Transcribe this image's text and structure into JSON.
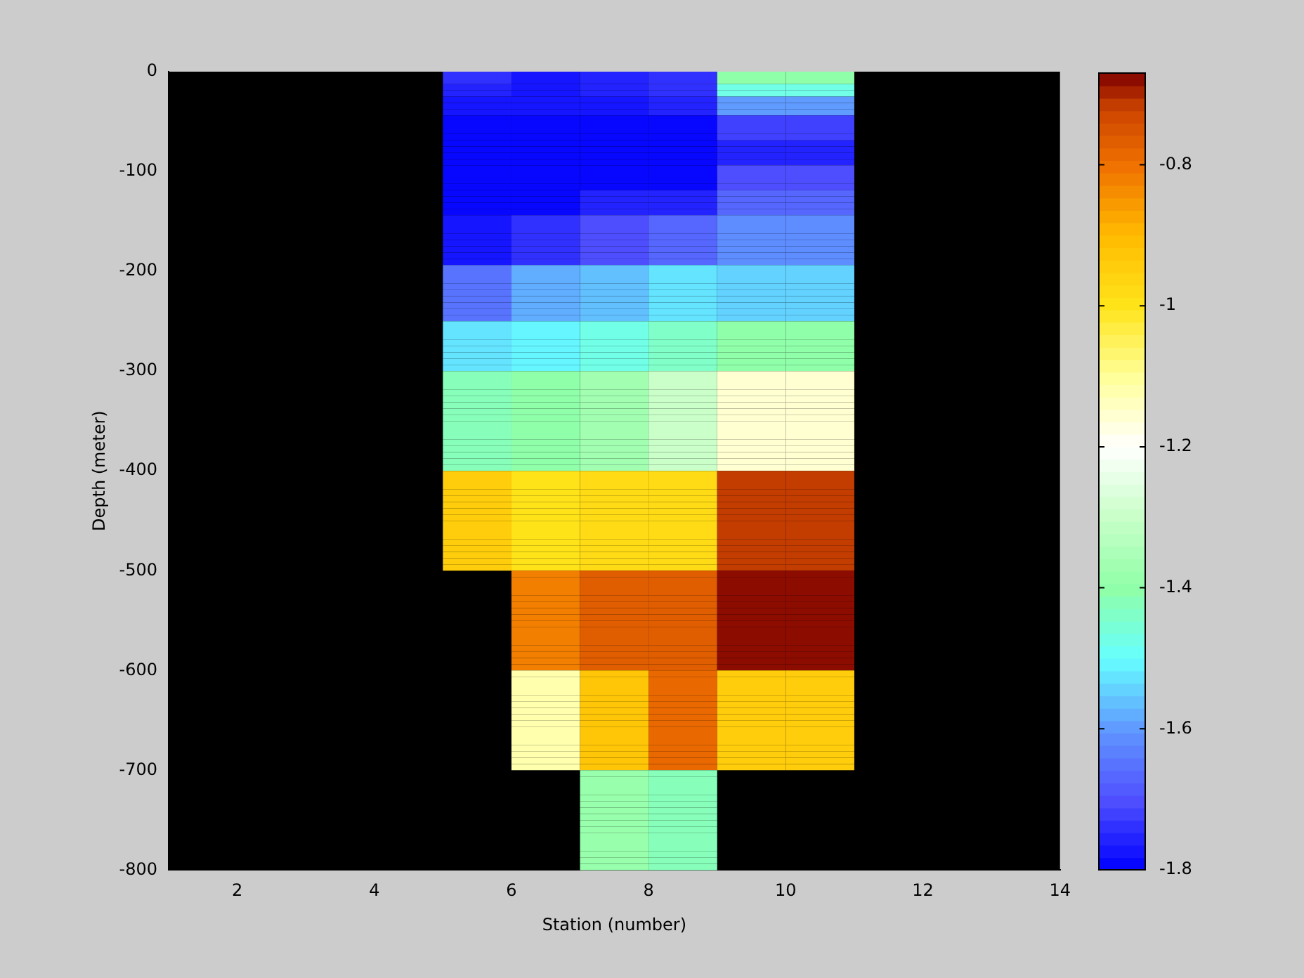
{
  "chart_data": {
    "type": "heatmap",
    "xlabel": "Station (number)",
    "ylabel": "Depth (meter)",
    "cells": [
      [
        null,
        null,
        null,
        null,
        -1.74,
        -1.77,
        -1.76,
        -1.74,
        -1.4,
        -1.4,
        null,
        null,
        null
      ],
      [
        null,
        null,
        null,
        null,
        -1.74,
        -1.77,
        -1.76,
        -1.74,
        -1.4,
        -1.4,
        null,
        null,
        null
      ],
      [
        null,
        null,
        null,
        null,
        -1.75,
        -1.77,
        -1.75,
        -1.73,
        -1.48,
        -1.48,
        null,
        null,
        null
      ],
      [
        null,
        null,
        null,
        null,
        -1.75,
        -1.77,
        -1.75,
        -1.73,
        -1.48,
        -1.48,
        null,
        null,
        null
      ],
      [
        null,
        null,
        null,
        null,
        -1.77,
        -1.78,
        -1.77,
        -1.76,
        -1.6,
        -1.6,
        null,
        null,
        null
      ],
      [
        null,
        null,
        null,
        null,
        -1.77,
        -1.78,
        -1.77,
        -1.76,
        -1.6,
        -1.6,
        null,
        null,
        null
      ],
      [
        null,
        null,
        null,
        null,
        -1.77,
        -1.78,
        -1.77,
        -1.76,
        -1.6,
        -1.6,
        null,
        null,
        null
      ],
      [
        null,
        null,
        null,
        null,
        -1.8,
        -1.8,
        -1.79,
        -1.79,
        -1.72,
        -1.72,
        null,
        null,
        null
      ],
      [
        null,
        null,
        null,
        null,
        -1.8,
        -1.8,
        -1.79,
        -1.79,
        -1.72,
        -1.72,
        null,
        null,
        null
      ],
      [
        null,
        null,
        null,
        null,
        -1.8,
        -1.8,
        -1.79,
        -1.79,
        -1.72,
        -1.72,
        null,
        null,
        null
      ],
      [
        null,
        null,
        null,
        null,
        -1.8,
        -1.8,
        -1.79,
        -1.79,
        -1.72,
        -1.72,
        null,
        null,
        null
      ],
      [
        null,
        null,
        null,
        null,
        -1.8,
        -1.8,
        -1.8,
        -1.8,
        -1.76,
        -1.76,
        null,
        null,
        null
      ],
      [
        null,
        null,
        null,
        null,
        -1.8,
        -1.8,
        -1.8,
        -1.8,
        -1.76,
        -1.76,
        null,
        null,
        null
      ],
      [
        null,
        null,
        null,
        null,
        -1.8,
        -1.8,
        -1.8,
        -1.8,
        -1.76,
        -1.76,
        null,
        null,
        null
      ],
      [
        null,
        null,
        null,
        null,
        -1.8,
        -1.8,
        -1.8,
        -1.8,
        -1.76,
        -1.76,
        null,
        null,
        null
      ],
      [
        null,
        null,
        null,
        null,
        -1.8,
        -1.8,
        -1.79,
        -1.79,
        -1.71,
        -1.71,
        null,
        null,
        null
      ],
      [
        null,
        null,
        null,
        null,
        -1.8,
        -1.8,
        -1.79,
        -1.79,
        -1.71,
        -1.71,
        null,
        null,
        null
      ],
      [
        null,
        null,
        null,
        null,
        -1.8,
        -1.8,
        -1.79,
        -1.79,
        -1.71,
        -1.71,
        null,
        null,
        null
      ],
      [
        null,
        null,
        null,
        null,
        -1.8,
        -1.8,
        -1.79,
        -1.79,
        -1.71,
        -1.71,
        null,
        null,
        null
      ],
      [
        null,
        null,
        null,
        null,
        -1.8,
        -1.79,
        -1.76,
        -1.76,
        -1.67,
        -1.67,
        null,
        null,
        null
      ],
      [
        null,
        null,
        null,
        null,
        -1.8,
        -1.79,
        -1.76,
        -1.76,
        -1.67,
        -1.67,
        null,
        null,
        null
      ],
      [
        null,
        null,
        null,
        null,
        -1.8,
        -1.79,
        -1.76,
        -1.76,
        -1.67,
        -1.67,
        null,
        null,
        null
      ],
      [
        null,
        null,
        null,
        null,
        -1.8,
        -1.79,
        -1.76,
        -1.76,
        -1.67,
        -1.67,
        null,
        null,
        null
      ],
      [
        null,
        null,
        null,
        null,
        -1.78,
        -1.74,
        -1.71,
        -1.67,
        -1.62,
        -1.62,
        null,
        null,
        null
      ],
      [
        null,
        null,
        null,
        null,
        -1.78,
        -1.74,
        -1.71,
        -1.67,
        -1.62,
        -1.62,
        null,
        null,
        null
      ],
      [
        null,
        null,
        null,
        null,
        -1.78,
        -1.74,
        -1.71,
        -1.67,
        -1.62,
        -1.62,
        null,
        null,
        null
      ],
      [
        null,
        null,
        null,
        null,
        -1.78,
        -1.74,
        -1.71,
        -1.67,
        -1.62,
        -1.62,
        null,
        null,
        null
      ],
      [
        null,
        null,
        null,
        null,
        -1.78,
        -1.74,
        -1.71,
        -1.67,
        -1.62,
        -1.62,
        null,
        null,
        null
      ],
      [
        null,
        null,
        null,
        null,
        -1.78,
        -1.74,
        -1.71,
        -1.67,
        -1.62,
        -1.62,
        null,
        null,
        null
      ],
      [
        null,
        null,
        null,
        null,
        -1.78,
        -1.74,
        -1.71,
        -1.67,
        -1.62,
        -1.62,
        null,
        null,
        null
      ],
      [
        null,
        null,
        null,
        null,
        -1.78,
        -1.74,
        -1.71,
        -1.67,
        -1.62,
        -1.62,
        null,
        null,
        null
      ],
      [
        null,
        null,
        null,
        null,
        -1.65,
        -1.58,
        -1.56,
        -1.52,
        -1.54,
        -1.54,
        null,
        null,
        null
      ],
      [
        null,
        null,
        null,
        null,
        -1.65,
        -1.58,
        -1.56,
        -1.52,
        -1.54,
        -1.54,
        null,
        null,
        null
      ],
      [
        null,
        null,
        null,
        null,
        -1.65,
        -1.58,
        -1.56,
        -1.52,
        -1.54,
        -1.54,
        null,
        null,
        null
      ],
      [
        null,
        null,
        null,
        null,
        -1.65,
        -1.58,
        -1.56,
        -1.52,
        -1.54,
        -1.54,
        null,
        null,
        null
      ],
      [
        null,
        null,
        null,
        null,
        -1.65,
        -1.58,
        -1.56,
        -1.52,
        -1.54,
        -1.54,
        null,
        null,
        null
      ],
      [
        null,
        null,
        null,
        null,
        -1.65,
        -1.58,
        -1.56,
        -1.52,
        -1.54,
        -1.54,
        null,
        null,
        null
      ],
      [
        null,
        null,
        null,
        null,
        -1.65,
        -1.58,
        -1.56,
        -1.52,
        -1.54,
        -1.54,
        null,
        null,
        null
      ],
      [
        null,
        null,
        null,
        null,
        -1.65,
        -1.58,
        -1.56,
        -1.52,
        -1.54,
        -1.54,
        null,
        null,
        null
      ],
      [
        null,
        null,
        null,
        null,
        -1.65,
        -1.58,
        -1.56,
        -1.52,
        -1.54,
        -1.54,
        null,
        null,
        null
      ],
      [
        null,
        null,
        null,
        null,
        -1.52,
        -1.5,
        -1.48,
        -1.44,
        -1.4,
        -1.4,
        null,
        null,
        null
      ],
      [
        null,
        null,
        null,
        null,
        -1.52,
        -1.5,
        -1.48,
        -1.44,
        -1.4,
        -1.4,
        null,
        null,
        null
      ],
      [
        null,
        null,
        null,
        null,
        -1.52,
        -1.5,
        -1.48,
        -1.44,
        -1.4,
        -1.4,
        null,
        null,
        null
      ],
      [
        null,
        null,
        null,
        null,
        -1.52,
        -1.5,
        -1.48,
        -1.44,
        -1.4,
        -1.4,
        null,
        null,
        null
      ],
      [
        null,
        null,
        null,
        null,
        -1.52,
        -1.5,
        -1.48,
        -1.44,
        -1.4,
        -1.4,
        null,
        null,
        null
      ],
      [
        null,
        null,
        null,
        null,
        -1.52,
        -1.5,
        -1.48,
        -1.44,
        -1.4,
        -1.4,
        null,
        null,
        null
      ],
      [
        null,
        null,
        null,
        null,
        -1.52,
        -1.5,
        -1.48,
        -1.44,
        -1.4,
        -1.4,
        null,
        null,
        null
      ],
      [
        null,
        null,
        null,
        null,
        -1.52,
        -1.5,
        -1.48,
        -1.44,
        -1.4,
        -1.4,
        null,
        null,
        null
      ],
      [
        null,
        null,
        null,
        null,
        -1.42,
        -1.4,
        -1.37,
        -1.3,
        -1.16,
        -1.16,
        null,
        null,
        null
      ],
      [
        null,
        null,
        null,
        null,
        -1.42,
        -1.4,
        -1.37,
        -1.3,
        -1.16,
        -1.16,
        null,
        null,
        null
      ],
      [
        null,
        null,
        null,
        null,
        -1.42,
        -1.4,
        -1.37,
        -1.3,
        -1.16,
        -1.16,
        null,
        null,
        null
      ],
      [
        null,
        null,
        null,
        null,
        -1.42,
        -1.4,
        -1.37,
        -1.3,
        -1.16,
        -1.16,
        null,
        null,
        null
      ],
      [
        null,
        null,
        null,
        null,
        -1.42,
        -1.4,
        -1.37,
        -1.3,
        -1.16,
        -1.16,
        null,
        null,
        null
      ],
      [
        null,
        null,
        null,
        null,
        -1.42,
        -1.4,
        -1.37,
        -1.3,
        -1.16,
        -1.16,
        null,
        null,
        null
      ],
      [
        null,
        null,
        null,
        null,
        -1.42,
        -1.4,
        -1.37,
        -1.3,
        -1.16,
        -1.16,
        null,
        null,
        null
      ],
      [
        null,
        null,
        null,
        null,
        -1.42,
        -1.4,
        -1.37,
        -1.3,
        -1.16,
        -1.16,
        null,
        null,
        null
      ],
      [
        null,
        null,
        null,
        null,
        -1.42,
        -1.4,
        -1.37,
        -1.3,
        -1.16,
        -1.16,
        null,
        null,
        null
      ],
      [
        null,
        null,
        null,
        null,
        -1.42,
        -1.4,
        -1.37,
        -1.3,
        -1.16,
        -1.16,
        null,
        null,
        null
      ],
      [
        null,
        null,
        null,
        null,
        -1.42,
        -1.4,
        -1.37,
        -1.3,
        -1.16,
        -1.16,
        null,
        null,
        null
      ],
      [
        null,
        null,
        null,
        null,
        -1.42,
        -1.4,
        -1.37,
        -1.3,
        -1.16,
        -1.16,
        null,
        null,
        null
      ],
      [
        null,
        null,
        null,
        null,
        -1.42,
        -1.4,
        -1.37,
        -1.3,
        -1.16,
        -1.16,
        null,
        null,
        null
      ],
      [
        null,
        null,
        null,
        null,
        -1.42,
        -1.4,
        -1.37,
        -1.3,
        -1.16,
        -1.16,
        null,
        null,
        null
      ],
      [
        null,
        null,
        null,
        null,
        -1.42,
        -1.4,
        -1.37,
        -1.3,
        -1.16,
        -1.16,
        null,
        null,
        null
      ],
      [
        null,
        null,
        null,
        null,
        -1.42,
        -1.4,
        -1.37,
        -1.3,
        -1.16,
        -1.16,
        null,
        null,
        null
      ],
      [
        null,
        null,
        null,
        null,
        -0.95,
        -0.99,
        -0.98,
        -0.98,
        -0.72,
        -0.72,
        null,
        null,
        null
      ],
      [
        null,
        null,
        null,
        null,
        -0.95,
        -0.99,
        -0.98,
        -0.98,
        -0.72,
        -0.72,
        null,
        null,
        null
      ],
      [
        null,
        null,
        null,
        null,
        -0.95,
        -0.99,
        -0.98,
        -0.98,
        -0.72,
        -0.72,
        null,
        null,
        null
      ],
      [
        null,
        null,
        null,
        null,
        -0.95,
        -0.99,
        -0.98,
        -0.98,
        -0.72,
        -0.72,
        null,
        null,
        null
      ],
      [
        null,
        null,
        null,
        null,
        -0.95,
        -0.99,
        -0.98,
        -0.98,
        -0.72,
        -0.72,
        null,
        null,
        null
      ],
      [
        null,
        null,
        null,
        null,
        -0.95,
        -0.99,
        -0.98,
        -0.98,
        -0.72,
        -0.72,
        null,
        null,
        null
      ],
      [
        null,
        null,
        null,
        null,
        -0.95,
        -0.99,
        -0.98,
        -0.98,
        -0.72,
        -0.72,
        null,
        null,
        null
      ],
      [
        null,
        null,
        null,
        null,
        -0.95,
        -0.99,
        -0.98,
        -0.98,
        -0.72,
        -0.72,
        null,
        null,
        null
      ],
      [
        null,
        null,
        null,
        null,
        -0.95,
        -0.99,
        -0.98,
        -0.98,
        -0.72,
        -0.72,
        null,
        null,
        null
      ],
      [
        null,
        null,
        null,
        null,
        -0.95,
        -0.99,
        -0.98,
        -0.98,
        -0.72,
        -0.72,
        null,
        null,
        null
      ],
      [
        null,
        null,
        null,
        null,
        -0.95,
        -0.99,
        -0.98,
        -0.98,
        -0.72,
        -0.72,
        null,
        null,
        null
      ],
      [
        null,
        null,
        null,
        null,
        -0.95,
        -0.99,
        -0.98,
        -0.98,
        -0.72,
        -0.72,
        null,
        null,
        null
      ],
      [
        null,
        null,
        null,
        null,
        -0.95,
        -0.99,
        -0.98,
        -0.98,
        -0.72,
        -0.72,
        null,
        null,
        null
      ],
      [
        null,
        null,
        null,
        null,
        -0.95,
        -0.99,
        -0.98,
        -0.98,
        -0.72,
        -0.72,
        null,
        null,
        null
      ],
      [
        null,
        null,
        null,
        null,
        -0.95,
        -0.99,
        -0.98,
        -0.98,
        -0.72,
        -0.72,
        null,
        null,
        null
      ],
      [
        null,
        null,
        null,
        null,
        -0.95,
        -0.99,
        -0.98,
        -0.98,
        -0.72,
        -0.72,
        null,
        null,
        null
      ],
      [
        null,
        null,
        null,
        null,
        null,
        -0.82,
        -0.76,
        -0.76,
        -0.68,
        -0.68,
        null,
        null,
        null
      ],
      [
        null,
        null,
        null,
        null,
        null,
        -0.82,
        -0.76,
        -0.76,
        -0.68,
        -0.68,
        null,
        null,
        null
      ],
      [
        null,
        null,
        null,
        null,
        null,
        -0.82,
        -0.76,
        -0.76,
        -0.68,
        -0.68,
        null,
        null,
        null
      ],
      [
        null,
        null,
        null,
        null,
        null,
        -0.82,
        -0.76,
        -0.76,
        -0.68,
        -0.68,
        null,
        null,
        null
      ],
      [
        null,
        null,
        null,
        null,
        null,
        -0.82,
        -0.76,
        -0.76,
        -0.68,
        -0.68,
        null,
        null,
        null
      ],
      [
        null,
        null,
        null,
        null,
        null,
        -0.82,
        -0.76,
        -0.76,
        -0.68,
        -0.68,
        null,
        null,
        null
      ],
      [
        null,
        null,
        null,
        null,
        null,
        -0.82,
        -0.76,
        -0.76,
        -0.68,
        -0.68,
        null,
        null,
        null
      ],
      [
        null,
        null,
        null,
        null,
        null,
        -0.82,
        -0.76,
        -0.76,
        -0.68,
        -0.68,
        null,
        null,
        null
      ],
      [
        null,
        null,
        null,
        null,
        null,
        -0.82,
        -0.76,
        -0.76,
        -0.68,
        -0.68,
        null,
        null,
        null
      ],
      [
        null,
        null,
        null,
        null,
        null,
        -0.82,
        -0.76,
        -0.76,
        -0.68,
        -0.68,
        null,
        null,
        null
      ],
      [
        null,
        null,
        null,
        null,
        null,
        -0.82,
        -0.76,
        -0.76,
        -0.68,
        -0.68,
        null,
        null,
        null
      ],
      [
        null,
        null,
        null,
        null,
        null,
        -0.82,
        -0.76,
        -0.76,
        -0.68,
        -0.68,
        null,
        null,
        null
      ],
      [
        null,
        null,
        null,
        null,
        null,
        -0.82,
        -0.76,
        -0.76,
        -0.68,
        -0.68,
        null,
        null,
        null
      ],
      [
        null,
        null,
        null,
        null,
        null,
        -0.82,
        -0.76,
        -0.76,
        -0.68,
        -0.68,
        null,
        null,
        null
      ],
      [
        null,
        null,
        null,
        null,
        null,
        -0.82,
        -0.76,
        -0.76,
        -0.68,
        -0.68,
        null,
        null,
        null
      ],
      [
        null,
        null,
        null,
        null,
        null,
        -0.82,
        -0.76,
        -0.76,
        -0.68,
        -0.68,
        null,
        null,
        null
      ],
      [
        null,
        null,
        null,
        null,
        null,
        -1.12,
        -0.93,
        -0.79,
        -0.95,
        -0.95,
        null,
        null,
        null
      ],
      [
        null,
        null,
        null,
        null,
        null,
        -1.12,
        -0.93,
        -0.79,
        -0.95,
        -0.95,
        null,
        null,
        null
      ],
      [
        null,
        null,
        null,
        null,
        null,
        -1.12,
        -0.93,
        -0.79,
        -0.95,
        -0.95,
        null,
        null,
        null
      ],
      [
        null,
        null,
        null,
        null,
        null,
        -1.12,
        -0.93,
        -0.79,
        -0.95,
        -0.95,
        null,
        null,
        null
      ],
      [
        null,
        null,
        null,
        null,
        null,
        -1.12,
        -0.93,
        -0.79,
        -0.95,
        -0.95,
        null,
        null,
        null
      ],
      [
        null,
        null,
        null,
        null,
        null,
        -1.12,
        -0.93,
        -0.79,
        -0.95,
        -0.95,
        null,
        null,
        null
      ],
      [
        null,
        null,
        null,
        null,
        null,
        -1.12,
        -0.93,
        -0.79,
        -0.95,
        -0.95,
        null,
        null,
        null
      ],
      [
        null,
        null,
        null,
        null,
        null,
        -1.12,
        -0.93,
        -0.79,
        -0.95,
        -0.95,
        null,
        null,
        null
      ],
      [
        null,
        null,
        null,
        null,
        null,
        -1.12,
        -0.93,
        -0.79,
        -0.95,
        -0.95,
        null,
        null,
        null
      ],
      [
        null,
        null,
        null,
        null,
        null,
        -1.12,
        -0.93,
        -0.79,
        -0.95,
        -0.95,
        null,
        null,
        null
      ],
      [
        null,
        null,
        null,
        null,
        null,
        -1.12,
        -0.93,
        -0.79,
        -0.95,
        -0.95,
        null,
        null,
        null
      ],
      [
        null,
        null,
        null,
        null,
        null,
        -1.12,
        -0.93,
        -0.79,
        -0.95,
        -0.95,
        null,
        null,
        null
      ],
      [
        null,
        null,
        null,
        null,
        null,
        -1.12,
        -0.93,
        -0.79,
        -0.95,
        -0.95,
        null,
        null,
        null
      ],
      [
        null,
        null,
        null,
        null,
        null,
        -1.12,
        -0.93,
        -0.79,
        -0.95,
        -0.95,
        null,
        null,
        null
      ],
      [
        null,
        null,
        null,
        null,
        null,
        -1.12,
        -0.93,
        -0.79,
        -0.95,
        -0.95,
        null,
        null,
        null
      ],
      [
        null,
        null,
        null,
        null,
        null,
        -1.12,
        -0.93,
        -0.79,
        -0.95,
        -0.95,
        null,
        null,
        null
      ],
      [
        null,
        null,
        null,
        null,
        null,
        null,
        -1.39,
        -1.42,
        null,
        null,
        null,
        null,
        null
      ],
      [
        null,
        null,
        null,
        null,
        null,
        null,
        -1.39,
        -1.42,
        null,
        null,
        null,
        null,
        null
      ],
      [
        null,
        null,
        null,
        null,
        null,
        null,
        -1.39,
        -1.42,
        null,
        null,
        null,
        null,
        null
      ],
      [
        null,
        null,
        null,
        null,
        null,
        null,
        -1.39,
        -1.42,
        null,
        null,
        null,
        null,
        null
      ],
      [
        null,
        null,
        null,
        null,
        null,
        null,
        -1.39,
        -1.42,
        null,
        null,
        null,
        null,
        null
      ],
      [
        null,
        null,
        null,
        null,
        null,
        null,
        -1.39,
        -1.42,
        null,
        null,
        null,
        null,
        null
      ],
      [
        null,
        null,
        null,
        null,
        null,
        null,
        -1.39,
        -1.42,
        null,
        null,
        null,
        null,
        null
      ],
      [
        null,
        null,
        null,
        null,
        null,
        null,
        -1.39,
        -1.42,
        null,
        null,
        null,
        null,
        null
      ],
      [
        null,
        null,
        null,
        null,
        null,
        null,
        -1.39,
        -1.42,
        null,
        null,
        null,
        null,
        null
      ],
      [
        null,
        null,
        null,
        null,
        null,
        null,
        -1.39,
        -1.42,
        null,
        null,
        null,
        null,
        null
      ],
      [
        null,
        null,
        null,
        null,
        null,
        null,
        -1.39,
        -1.42,
        null,
        null,
        null,
        null,
        null
      ],
      [
        null,
        null,
        null,
        null,
        null,
        null,
        -1.39,
        -1.42,
        null,
        null,
        null,
        null,
        null
      ],
      [
        null,
        null,
        null,
        null,
        null,
        null,
        -1.39,
        -1.42,
        null,
        null,
        null,
        null,
        null
      ],
      [
        null,
        null,
        null,
        null,
        null,
        null,
        -1.39,
        -1.42,
        null,
        null,
        null,
        null,
        null
      ],
      [
        null,
        null,
        null,
        null,
        null,
        null,
        -1.39,
        -1.42,
        null,
        null,
        null,
        null,
        null
      ],
      [
        null,
        null,
        null,
        null,
        null,
        null,
        -1.39,
        -1.42,
        null,
        null,
        null,
        null,
        null
      ]
    ],
    "xlim": [
      1,
      14
    ],
    "xticks": [
      2,
      4,
      6,
      8,
      10,
      12,
      14
    ],
    "ylim": [
      -800,
      0
    ],
    "yticks": [
      -800,
      -700,
      -600,
      -500,
      -400,
      -300,
      -200,
      -100,
      0
    ],
    "clim": [
      -1.8,
      -0.67
    ],
    "cticks": [
      -1.8,
      -1.6,
      -1.4,
      -1.2,
      -1,
      -0.8
    ]
  }
}
